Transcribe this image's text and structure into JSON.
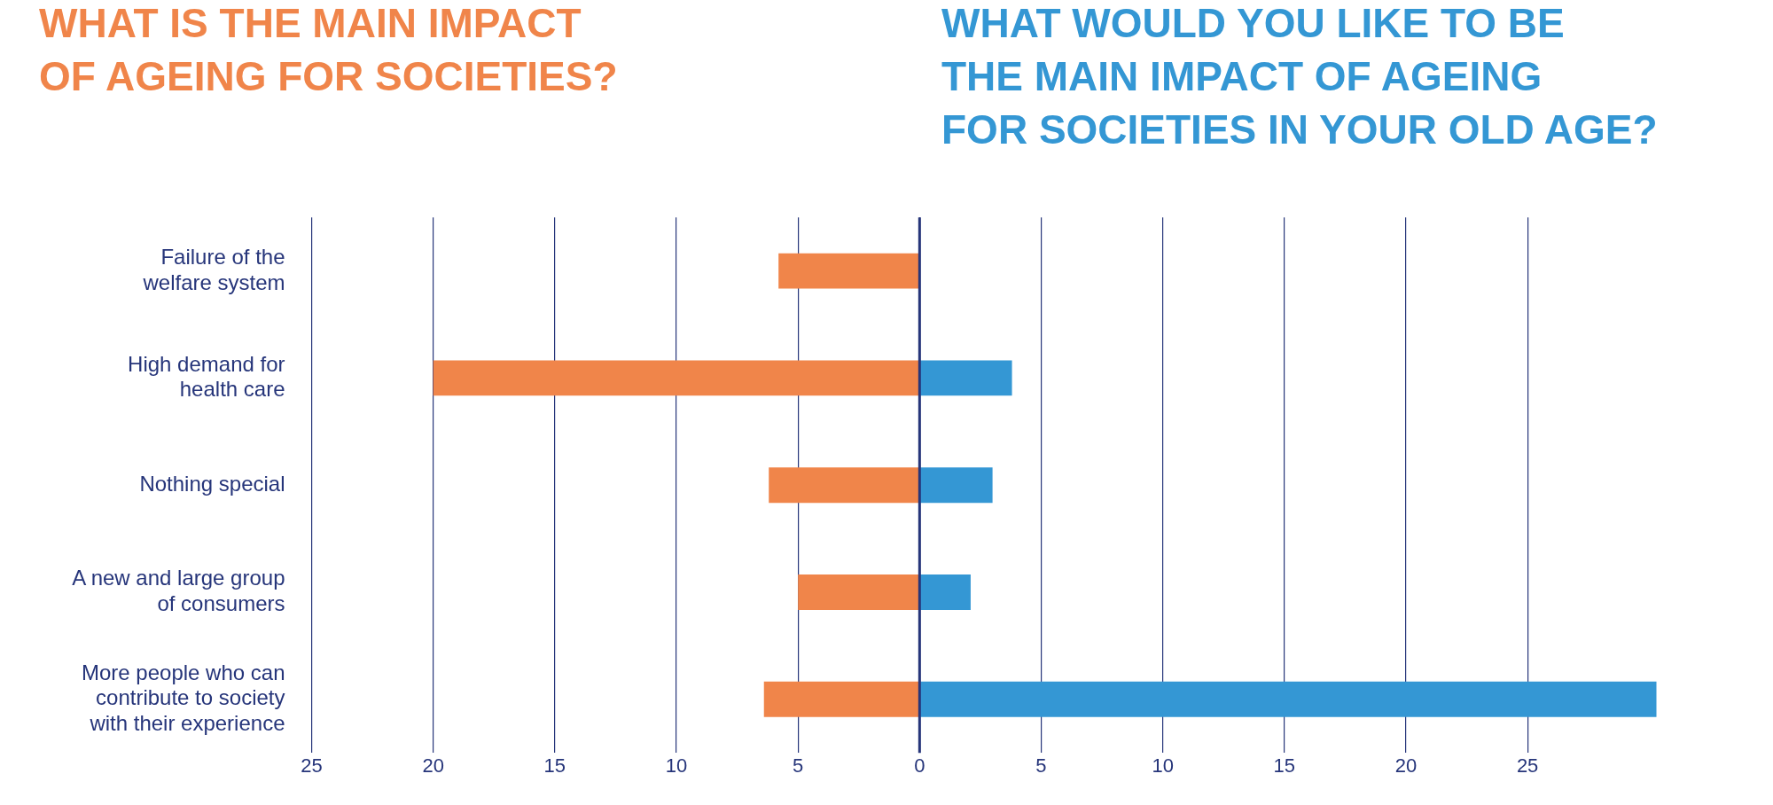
{
  "chart_data": {
    "type": "bar",
    "orientation": "horizontal",
    "title": "WHAT IS THE MAIN IMPACT\nOF AGEING FOR SOCIETIES?",
    "subtitle": "WHAT WOULD YOU LIKE TO BE\nTHE MAIN IMPACT OF AGEING\nFOR SOCIETIES IN YOUR OLD AGE?",
    "categories": [
      "Failure of the welfare system",
      "High demand for health care",
      "Nothing special",
      "A new and large group of consumers",
      "More people who can contribute to society with their experience"
    ],
    "series": [
      {
        "color": "#f0854a",
        "values": [
          -5.8,
          -20,
          -6.2,
          -5,
          -6.4
        ]
      },
      {
        "color": "#3497d4",
        "values": [
          null,
          3.8,
          3,
          2.1,
          30.3
        ]
      }
    ],
    "xlim": [
      -25,
      30.5
    ],
    "stacked": true,
    "ref_lines": [
      {
        "axis": "x",
        "value": 0,
        "color": "#26357a"
      }
    ],
    "xticks": [
      {
        "value": -25,
        "label": "25"
      },
      {
        "value": -20,
        "label": "20"
      },
      {
        "value": -15,
        "label": "15"
      },
      {
        "value": -10,
        "label": "10"
      },
      {
        "value": -5,
        "label": "5"
      },
      0,
      5,
      10,
      15,
      20,
      25
    ],
    "grid": "x",
    "legend": false
  }
}
